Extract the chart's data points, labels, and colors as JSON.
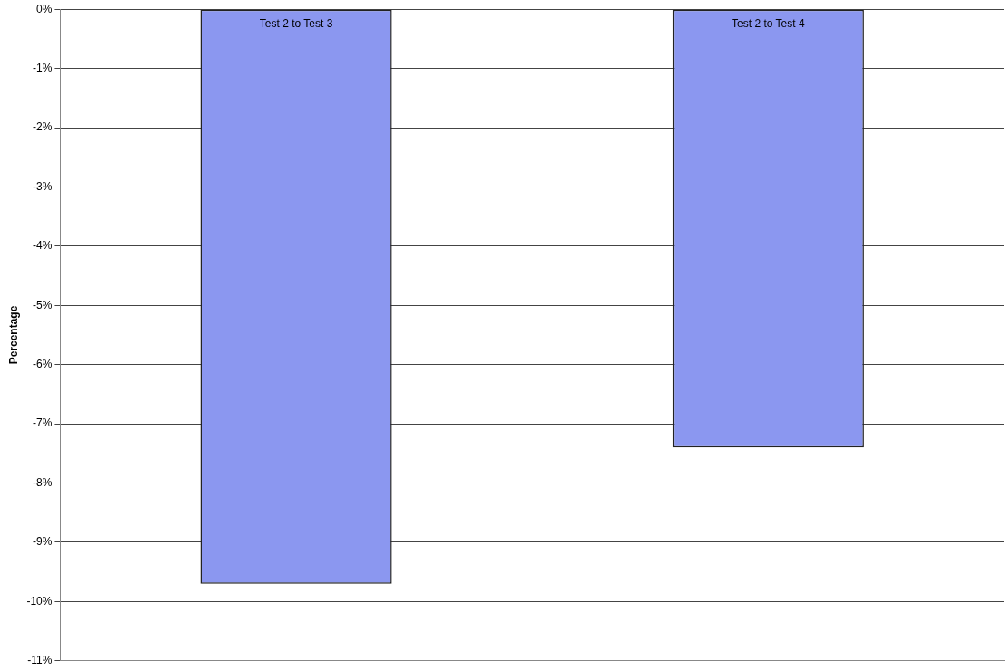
{
  "chart_data": {
    "type": "bar",
    "ylabel": "Percentage",
    "categories": [
      "Test 2 to Test 3",
      "Test 2 to Test 4"
    ],
    "values": [
      -9.7,
      -7.4
    ],
    "color": "#8b97f0",
    "ylim": [
      -11,
      0
    ],
    "yticks": [
      {
        "value": 0,
        "label": "0%"
      },
      {
        "value": -1,
        "label": "-1%"
      },
      {
        "value": -2,
        "label": "-2%"
      },
      {
        "value": -3,
        "label": "-3%"
      },
      {
        "value": -4,
        "label": "-4%"
      },
      {
        "value": -5,
        "label": "-5%"
      },
      {
        "value": -6,
        "label": "-6%"
      },
      {
        "value": -7,
        "label": "-7%"
      },
      {
        "value": -8,
        "label": "-8%"
      },
      {
        "value": -9,
        "label": "-9%"
      },
      {
        "value": -10,
        "label": "-10%"
      },
      {
        "value": -11,
        "label": "-11%"
      }
    ],
    "grid": "y",
    "tick_labels": "y",
    "legend": false
  }
}
